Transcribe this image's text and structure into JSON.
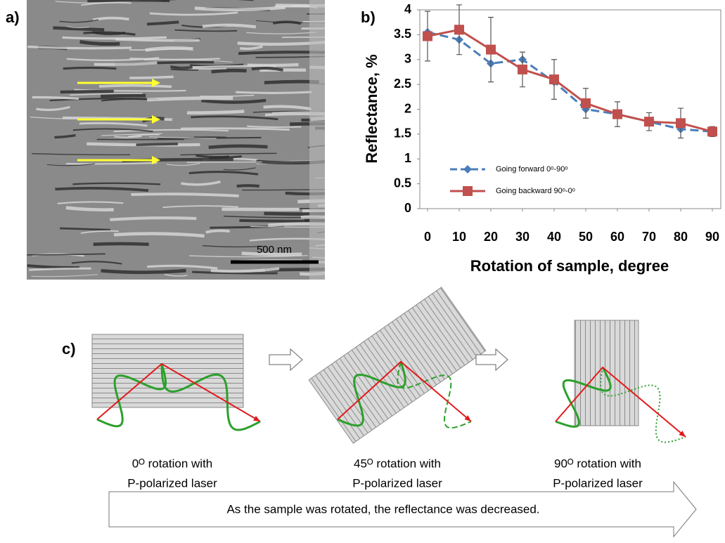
{
  "panel_labels": [
    "a)",
    "b)",
    "c)"
  ],
  "sem_image": {
    "scale_bar": "500 nm"
  },
  "chart_data": {
    "type": "line",
    "ylabel": "Reflectance, %",
    "xlabel": "Rotation of sample, degree",
    "x": [
      0,
      10,
      20,
      30,
      40,
      50,
      60,
      70,
      80,
      90
    ],
    "series": [
      {
        "name": "Going forward 0ᵒ-90ᵒ",
        "color": "#4a7ebb",
        "dashed": true,
        "marker": "diamond",
        "values": [
          3.55,
          3.4,
          2.92,
          3.0,
          2.55,
          2.0,
          1.9,
          1.75,
          1.6,
          1.55
        ]
      },
      {
        "name": "Going backward 90ᵒ-0ᵒ",
        "color": "#c0504d",
        "dashed": false,
        "marker": "square",
        "values": [
          3.47,
          3.6,
          3.2,
          2.8,
          2.6,
          2.12,
          1.9,
          1.75,
          1.72,
          1.55
        ],
        "errors": [
          0.5,
          0.5,
          0.65,
          0.35,
          0.4,
          0.3,
          0.25,
          0.18,
          0.3,
          0.1
        ]
      }
    ],
    "xlim": [
      0,
      90
    ],
    "ylim": [
      0,
      4
    ],
    "xticks": [
      0,
      10,
      20,
      30,
      40,
      50,
      60,
      70,
      80,
      90
    ],
    "yticks": [
      0,
      0.5,
      1,
      1.5,
      2,
      2.5,
      3,
      3.5,
      4
    ],
    "grid": false,
    "legend": "center left"
  },
  "diagram": {
    "captions": [
      [
        "0ᴼ rotation with",
        "P-polarized laser"
      ],
      [
        "45ᴼ rotation with",
        "P-polarized laser"
      ],
      [
        "90ᴼ rotation with",
        "P-polarized laser"
      ]
    ],
    "arrow_text": "As the sample was rotated, the reflectance was decreased."
  }
}
